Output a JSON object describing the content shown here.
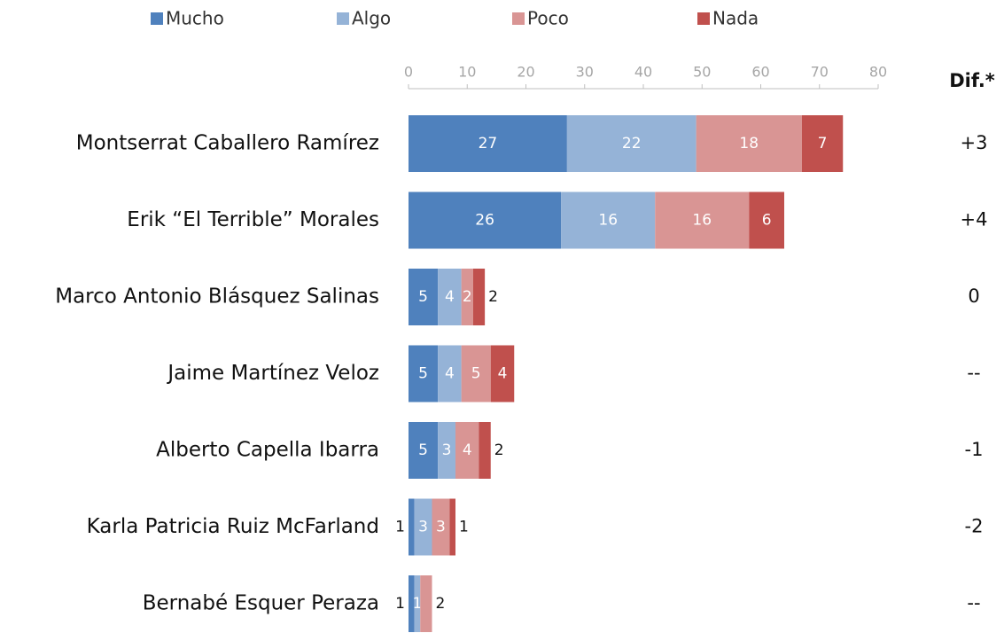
{
  "chart_data": {
    "type": "bar",
    "orientation": "horizontal",
    "stacked": true,
    "categories": [
      "Montserrat Caballero Ramírez",
      "Erik “El Terrible” Morales",
      "Marco Antonio Blásquez Salinas",
      "Jaime Martínez Veloz",
      "Alberto Capella Ibarra",
      "Karla Patricia Ruiz McFarland",
      "Bernabé Esquer Peraza"
    ],
    "series": [
      {
        "name": "Mucho",
        "color": "#4f81bd",
        "values": [
          27,
          26,
          5,
          5,
          5,
          1,
          1
        ]
      },
      {
        "name": "Algo",
        "color": "#95b3d7",
        "values": [
          22,
          16,
          4,
          4,
          3,
          3,
          1
        ]
      },
      {
        "name": "Poco",
        "color": "#d99594",
        "values": [
          18,
          16,
          2,
          5,
          4,
          3,
          2
        ]
      },
      {
        "name": "Nada",
        "color": "#c0504d",
        "values": [
          7,
          6,
          2,
          4,
          2,
          1,
          null
        ]
      }
    ],
    "xlim": [
      0,
      80
    ],
    "xticks": [
      0,
      10,
      20,
      30,
      40,
      50,
      60,
      70,
      80
    ],
    "dif_title": "Dif.*",
    "dif": [
      "+3",
      "+4",
      "0",
      "--",
      "-1",
      "-2",
      "--"
    ]
  }
}
